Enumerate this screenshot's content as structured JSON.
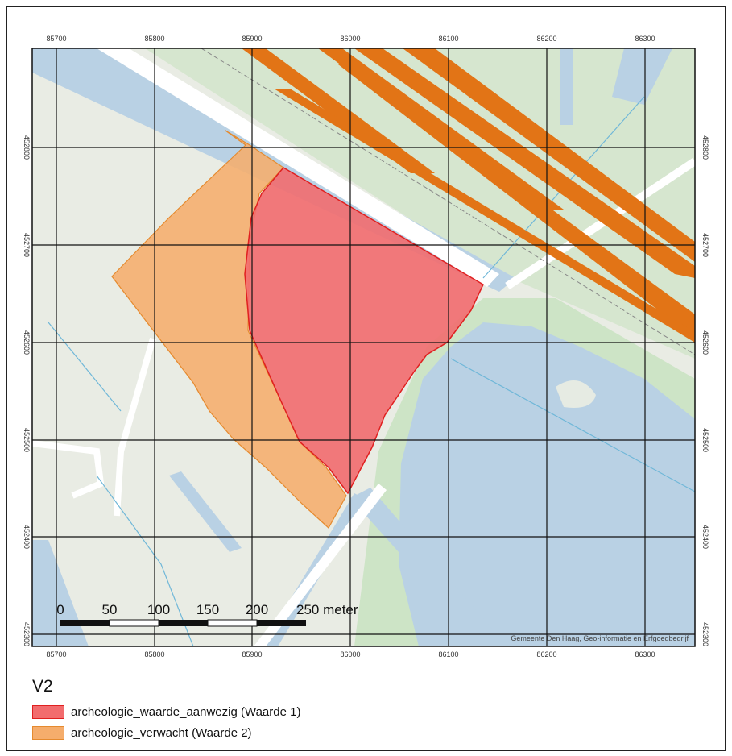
{
  "map": {
    "x_ticks": [
      "85700",
      "85800",
      "85900",
      "86000",
      "86100",
      "86200",
      "86300"
    ],
    "y_ticks": [
      "452800",
      "452700",
      "452600",
      "452500",
      "452400",
      "452300"
    ],
    "scale_bar": {
      "labels": [
        "0",
        "50",
        "100",
        "150",
        "200",
        "250 meter"
      ]
    },
    "credit": "Gemeente Den Haag, Geo-informatie en Erfgoedbedrijf",
    "colors": {
      "land": "#e9ece4",
      "green": "#cfe3cc",
      "water": "#b9d1e4",
      "road": "#ffffff",
      "railway": "#e27416",
      "grid": "#111111"
    }
  },
  "legend": {
    "title": "V2",
    "items": [
      {
        "label": "archeologie_waarde_aanwezig (Waarde 1)",
        "fill": "#f26c6e",
        "stroke": "#e02020"
      },
      {
        "label": "archeologie_verwacht (Waarde 2)",
        "fill": "#f5ad6c",
        "stroke": "#e58a2e"
      }
    ]
  }
}
